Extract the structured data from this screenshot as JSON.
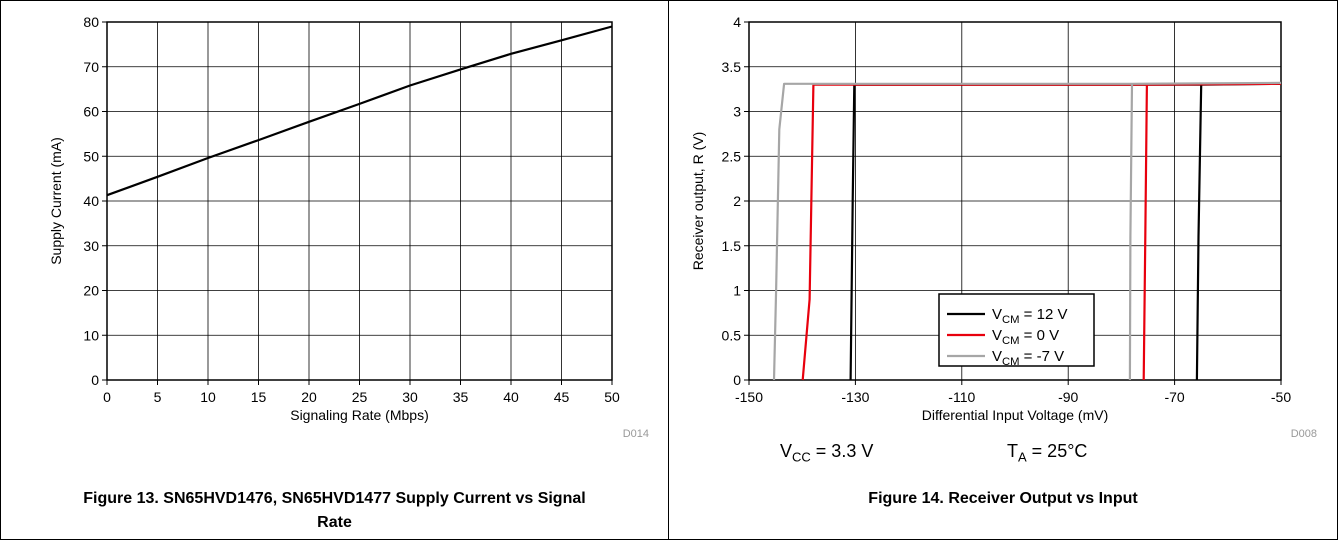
{
  "figures": [
    {
      "caption": "Figure 13. SN65HVD1476, SN65HVD1477 Supply Current vs Signal Rate",
      "code": "D014"
    },
    {
      "caption": "Figure 14. Receiver Output vs Input",
      "code": "D008",
      "conditions": [
        {
          "base": "V",
          "sub": "CC",
          "rest": " = 3.3 V"
        },
        {
          "base": "T",
          "sub": "A",
          "rest": " = 25°C"
        }
      ]
    }
  ],
  "chart_data": [
    {
      "type": "line",
      "xlabel": "Signaling Rate (Mbps)",
      "ylabel": "Supply Current (mA)",
      "xlim": [
        0,
        50
      ],
      "ylim": [
        0,
        80
      ],
      "xticks": [
        "0",
        "5",
        "10",
        "15",
        "20",
        "25",
        "30",
        "35",
        "40",
        "45",
        "50"
      ],
      "yticks": [
        "0",
        "10",
        "20",
        "30",
        "40",
        "50",
        "60",
        "70",
        "80"
      ],
      "grid": true,
      "series": [
        {
          "color": "#000000",
          "x": [
            0,
            5,
            10,
            15,
            20,
            25,
            30,
            35,
            40,
            45,
            50
          ],
          "y": [
            41.3,
            45.4,
            49.6,
            53.6,
            57.7,
            61.7,
            65.8,
            69.4,
            72.9,
            75.9,
            79
          ]
        }
      ]
    },
    {
      "type": "line",
      "xlabel": "Differential Input Voltage (mV)",
      "ylabel": "Receiver output, R (V)",
      "xlim": [
        -150,
        -50
      ],
      "ylim": [
        0,
        4
      ],
      "xticks": [
        "-150",
        "-130",
        "-110",
        "-90",
        "-70",
        "-50"
      ],
      "yticks": [
        "0",
        "0.5",
        "1",
        "1.5",
        "2",
        "2.5",
        "3",
        "3.5",
        "4"
      ],
      "grid": true,
      "legend": "bottom-center",
      "series": [
        {
          "base": "V",
          "sub": "CM",
          "rest": " = 12 V",
          "color": "#000000",
          "x": [
            -130.9,
            -130.5,
            -130.2,
            -65,
            -50
          ],
          "y": [
            0,
            2,
            3.3,
            3.3,
            3.31
          ],
          "x2": [
            -65.8,
            -65.5,
            -65
          ],
          "y2": [
            0,
            1.6,
            3.3
          ]
        },
        {
          "base": "V",
          "sub": "CM",
          "rest": " = 0 V",
          "color": "#e8000d",
          "x": [
            -139.9,
            -138.6,
            -137.9,
            -75.2,
            -50
          ],
          "y": [
            0,
            0.9,
            3.3,
            3.3,
            3.31
          ],
          "x2": [
            -75.8,
            -75.5,
            -75.2
          ],
          "y2": [
            0,
            1.6,
            3.3
          ]
        },
        {
          "base": "V",
          "sub": "CM",
          "rest": " = -7 V",
          "color": "#a6a6a6",
          "x": [
            -145.3,
            -144.9,
            -144.3,
            -143.4,
            -78,
            -50
          ],
          "y": [
            0,
            1.0,
            2.8,
            3.31,
            3.31,
            3.32
          ],
          "x2": [
            -78.4,
            -78.3,
            -78
          ],
          "y2": [
            0,
            1.6,
            3.31
          ]
        }
      ]
    }
  ]
}
